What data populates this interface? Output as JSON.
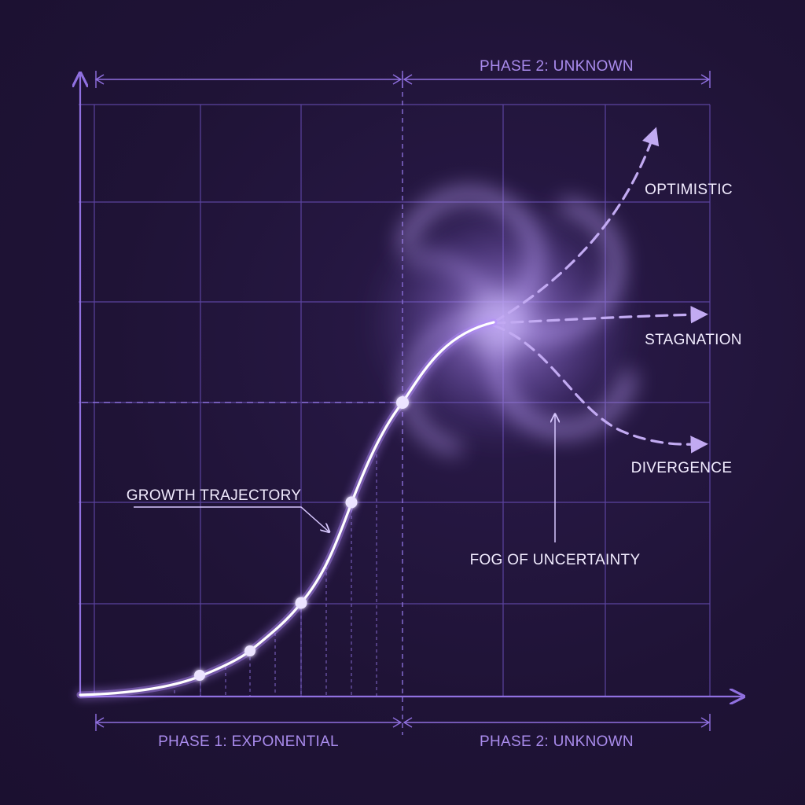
{
  "labels": {
    "phase2_top": "PHASE 2: UNKNOWN",
    "phase1_bottom": "PHASE 1: EXPONENTIAL",
    "phase2_bottom": "PHASE 2: UNKNOWN",
    "optimistic": "OPTIMISTIC",
    "stagnation": "STAGNATION",
    "divergence": "DIVERGENCE",
    "growth_trajectory": "GROWTH TRAJECTORY",
    "fog": "FOG OF UNCERTAINTY"
  },
  "colors": {
    "background": "#1f1336",
    "grid": "#6a4fb8",
    "axis": "#9070e0",
    "curve": "#ffffff",
    "curve_glow": "#b48cff",
    "scenario_lines": "#c2aaf2",
    "fog": "#a889e6",
    "text_light": "#f2ecff",
    "text_phase": "#a98bec"
  }
}
